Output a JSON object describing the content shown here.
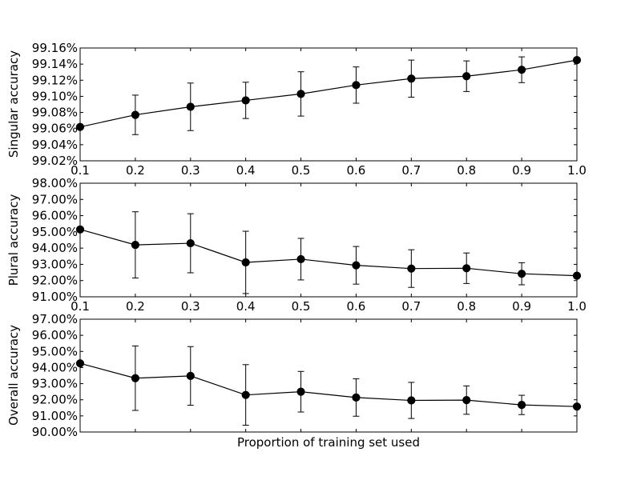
{
  "chart_data": [
    {
      "type": "line",
      "ylabel": "Singular accuracy",
      "xlabel": "",
      "x": [
        0.1,
        0.2,
        0.3,
        0.4,
        0.5,
        0.6,
        0.7,
        0.8,
        0.9,
        1.0
      ],
      "series": [
        {
          "values": [
            99.062,
            99.077,
            99.087,
            99.095,
            99.103,
            99.114,
            99.122,
            99.125,
            99.133,
            99.145
          ],
          "error": [
            0,
            0.0245,
            0.0295,
            0.0225,
            0.0275,
            0.0225,
            0.023,
            0.019,
            0.016,
            0
          ],
          "marker": "circle",
          "color": "#000000"
        }
      ],
      "xlim": [
        0.1,
        1.0
      ],
      "ylim": [
        99.02,
        99.16
      ],
      "x_ticks": [
        "0.1",
        "0.2",
        "0.3",
        "0.4",
        "0.5",
        "0.6",
        "0.7",
        "0.8",
        "0.9",
        "1.0"
      ],
      "x_tick_values": [
        0.1,
        0.2,
        0.3,
        0.4,
        0.5,
        0.6,
        0.7,
        0.8,
        0.9,
        1.0
      ],
      "y_ticks": [
        "99.02%",
        "99.04%",
        "99.06%",
        "99.08%",
        "99.10%",
        "99.12%",
        "99.14%",
        "99.16%"
      ],
      "y_tick_values": [
        99.02,
        99.04,
        99.06,
        99.08,
        99.1,
        99.12,
        99.14,
        99.16
      ],
      "grid": false
    },
    {
      "type": "line",
      "ylabel": "Plural accuracy",
      "xlabel": "",
      "x": [
        0.1,
        0.2,
        0.3,
        0.4,
        0.5,
        0.6,
        0.7,
        0.8,
        0.9,
        1.0
      ],
      "series": [
        {
          "values": [
            95.15,
            94.2,
            94.3,
            93.12,
            93.32,
            92.94,
            92.74,
            92.76,
            92.42,
            92.3
          ],
          "error": [
            0,
            2.04,
            1.82,
            1.92,
            1.28,
            1.16,
            1.16,
            0.94,
            0.68,
            0
          ],
          "marker": "circle",
          "color": "#000000"
        }
      ],
      "xlim": [
        0.1,
        1.0
      ],
      "ylim": [
        91.0,
        98.0
      ],
      "x_ticks": [
        "0.1",
        "0.2",
        "0.3",
        "0.4",
        "0.5",
        "0.6",
        "0.7",
        "0.8",
        "0.9",
        "1.0"
      ],
      "x_tick_values": [
        0.1,
        0.2,
        0.3,
        0.4,
        0.5,
        0.6,
        0.7,
        0.8,
        0.9,
        1.0
      ],
      "y_ticks": [
        "91.00%",
        "92.00%",
        "93.00%",
        "94.00%",
        "95.00%",
        "96.00%",
        "97.00%",
        "98.00%"
      ],
      "y_tick_values": [
        91,
        92,
        93,
        94,
        95,
        96,
        97,
        98
      ],
      "grid": false
    },
    {
      "type": "line",
      "ylabel": "Overall accuracy",
      "xlabel": "Proportion of training set used",
      "x": [
        0.1,
        0.2,
        0.3,
        0.4,
        0.5,
        0.6,
        0.7,
        0.8,
        0.9,
        1.0
      ],
      "series": [
        {
          "values": [
            94.26,
            93.34,
            93.48,
            92.3,
            92.5,
            92.14,
            91.96,
            91.98,
            91.68,
            91.58
          ],
          "error": [
            0,
            2.0,
            1.82,
            1.88,
            1.26,
            1.16,
            1.12,
            0.88,
            0.6,
            0
          ],
          "marker": "circle",
          "color": "#000000"
        }
      ],
      "xlim": [
        0.1,
        1.0
      ],
      "ylim": [
        90.0,
        97.0
      ],
      "x_ticks": [],
      "x_tick_values": [
        0.1,
        0.2,
        0.3,
        0.4,
        0.5,
        0.6,
        0.7,
        0.8,
        0.9,
        1.0
      ],
      "y_ticks": [
        "90.00%",
        "91.00%",
        "92.00%",
        "93.00%",
        "94.00%",
        "95.00%",
        "96.00%",
        "97.00%"
      ],
      "y_tick_values": [
        90,
        91,
        92,
        93,
        94,
        95,
        96,
        97
      ],
      "grid": false
    }
  ]
}
